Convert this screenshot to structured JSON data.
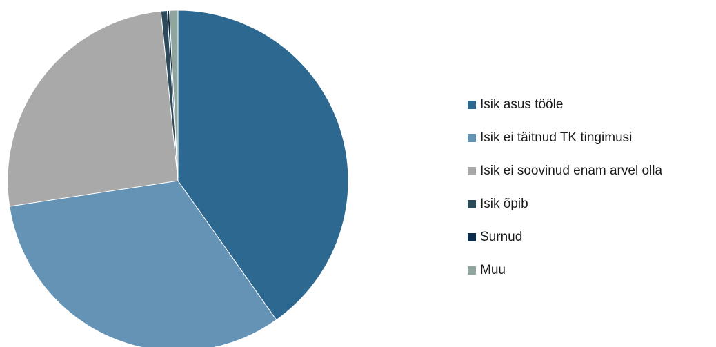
{
  "chart_data": {
    "type": "pie",
    "start_angle_deg": 0,
    "direction": "clockwise",
    "legend_position": "right",
    "slices": [
      {
        "label": "Isik asus tööle",
        "value": 40.2,
        "color": "#2d6891"
      },
      {
        "label": "Isik ei täitnud TK tingimusi",
        "value": 32.4,
        "color": "#6593b5"
      },
      {
        "label": "Isik ei soovinud enam arvel olla",
        "value": 25.8,
        "color": "#a9a9a9"
      },
      {
        "label": "Isik õpib",
        "value": 0.6,
        "color": "#2c4a5a"
      },
      {
        "label": "Surnud",
        "value": 0.2,
        "color": "#0b2c4a"
      },
      {
        "label": "Muu",
        "value": 0.8,
        "color": "#8fa59e"
      }
    ]
  }
}
